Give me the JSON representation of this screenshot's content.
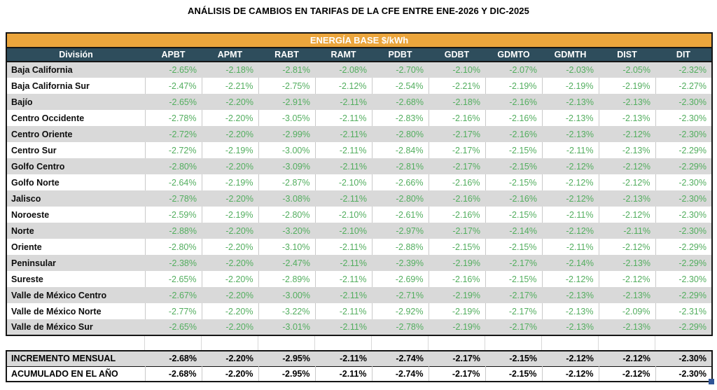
{
  "title": "ANÁLISIS DE CAMBIOS EN TARIFAS DE LA CFE ENTRE ENE-2026 Y DIC-2025",
  "table": {
    "banner": "ENERGÍA BASE $/kWh",
    "columns": [
      "División",
      "APBT",
      "APMT",
      "RABT",
      "RAMT",
      "PDBT",
      "GDBT",
      "GDMTO",
      "GDMTH",
      "DIST",
      "DIT"
    ]
  },
  "colors": {
    "banner_bg": "#EBA53C",
    "header_bg": "#2E4D5C",
    "stripe_bg": "#D9D9D9",
    "value_green": "#53AE5F",
    "border_dark": "#151515",
    "selection_handle": "#2F5496"
  },
  "chart_data": {
    "type": "table",
    "title": "ANÁLISIS DE CAMBIOS EN TARIFAS DE LA CFE ENTRE ENE-2026 Y DIC-2025",
    "subtitle": "ENERGÍA BASE $/kWh",
    "units": "percent",
    "columns": [
      "APBT",
      "APMT",
      "RABT",
      "RAMT",
      "PDBT",
      "GDBT",
      "GDMTO",
      "GDMTH",
      "DIST",
      "DIT"
    ],
    "rows": [
      {
        "division": "Baja California",
        "values": [
          -2.65,
          -2.18,
          -2.81,
          -2.08,
          -2.7,
          -2.1,
          -2.07,
          -2.03,
          -2.05,
          -2.32
        ]
      },
      {
        "division": "Baja California Sur",
        "values": [
          -2.47,
          -2.21,
          -2.75,
          -2.12,
          -2.54,
          -2.21,
          -2.19,
          -2.19,
          -2.19,
          -2.27
        ]
      },
      {
        "division": "Bajío",
        "values": [
          -2.65,
          -2.2,
          -2.91,
          -2.11,
          -2.68,
          -2.18,
          -2.16,
          -2.13,
          -2.13,
          -2.3
        ]
      },
      {
        "division": "Centro Occidente",
        "values": [
          -2.78,
          -2.2,
          -3.05,
          -2.11,
          -2.83,
          -2.16,
          -2.16,
          -2.13,
          -2.13,
          -2.3
        ]
      },
      {
        "division": "Centro Oriente",
        "values": [
          -2.72,
          -2.2,
          -2.99,
          -2.11,
          -2.8,
          -2.17,
          -2.16,
          -2.13,
          -2.12,
          -2.3
        ]
      },
      {
        "division": "Centro Sur",
        "values": [
          -2.72,
          -2.19,
          -3.0,
          -2.11,
          -2.84,
          -2.17,
          -2.15,
          -2.11,
          -2.13,
          -2.29
        ]
      },
      {
        "division": "Golfo Centro",
        "values": [
          -2.8,
          -2.2,
          -3.09,
          -2.11,
          -2.81,
          -2.17,
          -2.15,
          -2.12,
          -2.12,
          -2.29
        ]
      },
      {
        "division": "Golfo Norte",
        "values": [
          -2.64,
          -2.19,
          -2.87,
          -2.1,
          -2.66,
          -2.16,
          -2.15,
          -2.12,
          -2.12,
          -2.3
        ]
      },
      {
        "division": "Jalisco",
        "values": [
          -2.78,
          -2.2,
          -3.08,
          -2.11,
          -2.8,
          -2.16,
          -2.16,
          -2.12,
          -2.13,
          -2.3
        ]
      },
      {
        "division": "Noroeste",
        "values": [
          -2.59,
          -2.19,
          -2.8,
          -2.1,
          -2.61,
          -2.16,
          -2.15,
          -2.11,
          -2.12,
          -2.3
        ]
      },
      {
        "division": "Norte",
        "values": [
          -2.88,
          -2.2,
          -3.2,
          -2.1,
          -2.97,
          -2.17,
          -2.14,
          -2.12,
          -2.11,
          -2.3
        ]
      },
      {
        "division": "Oriente",
        "values": [
          -2.8,
          -2.2,
          -3.1,
          -2.11,
          -2.88,
          -2.15,
          -2.15,
          -2.11,
          -2.12,
          -2.29
        ]
      },
      {
        "division": "Peninsular",
        "values": [
          -2.38,
          -2.2,
          -2.47,
          -2.11,
          -2.39,
          -2.19,
          -2.17,
          -2.14,
          -2.13,
          -2.29
        ]
      },
      {
        "division": "Sureste",
        "values": [
          -2.65,
          -2.2,
          -2.89,
          -2.11,
          -2.69,
          -2.16,
          -2.15,
          -2.12,
          -2.12,
          -2.3
        ]
      },
      {
        "division": "Valle de México Centro",
        "values": [
          -2.67,
          -2.2,
          -3.0,
          -2.11,
          -2.71,
          -2.19,
          -2.17,
          -2.13,
          -2.13,
          -2.29
        ]
      },
      {
        "division": "Valle de México Norte",
        "values": [
          -2.77,
          -2.2,
          -3.22,
          -2.11,
          -2.92,
          -2.19,
          -2.17,
          -2.13,
          -2.09,
          -2.31
        ]
      },
      {
        "division": "Valle de México Sur",
        "values": [
          -2.65,
          -2.2,
          -3.01,
          -2.11,
          -2.78,
          -2.19,
          -2.17,
          -2.13,
          -2.13,
          -2.29
        ]
      }
    ],
    "summary": [
      {
        "label": "INCREMENTO MENSUAL",
        "values": [
          -2.68,
          -2.2,
          -2.95,
          -2.11,
          -2.74,
          -2.17,
          -2.15,
          -2.12,
          -2.12,
          -2.3
        ]
      },
      {
        "label": "ACUMULADO EN EL AÑO",
        "values": [
          -2.68,
          -2.2,
          -2.95,
          -2.11,
          -2.74,
          -2.17,
          -2.15,
          -2.12,
          -2.12,
          -2.3
        ]
      }
    ]
  }
}
